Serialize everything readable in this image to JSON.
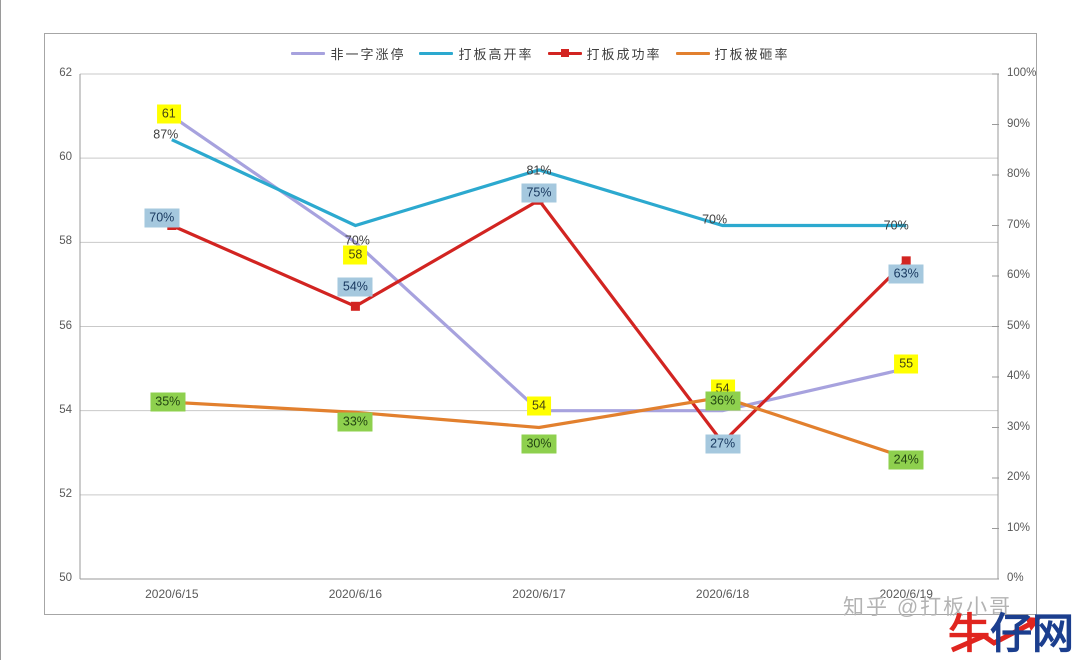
{
  "page": {
    "watermark": "知乎 @打板小哥",
    "logo": {
      "part_red": "牛",
      "part_blue": "仔网",
      "red": "#e0251f",
      "blue": "#1b3e8e"
    }
  },
  "chart_data": {
    "type": "line",
    "title": "",
    "categories": [
      "2020/6/15",
      "2020/6/16",
      "2020/6/17",
      "2020/6/18",
      "2020/6/19"
    ],
    "series": [
      {
        "name": "非一字涨停",
        "axis": "left",
        "color": "#a7a2de",
        "values": [
          61,
          58,
          54,
          54,
          55
        ],
        "label_style": "yellow",
        "label_suffix": "",
        "marker": "none"
      },
      {
        "name": "打板高开率",
        "axis": "right",
        "color": "#2ca9cf",
        "values": [
          87,
          70,
          81,
          70,
          70
        ],
        "label_style": "plain",
        "label_suffix": "%",
        "marker": "none"
      },
      {
        "name": "打板成功率",
        "axis": "right",
        "color": "#d22421",
        "values": [
          70,
          54,
          75,
          27,
          63
        ],
        "label_style": "blue",
        "label_suffix": "%",
        "marker": "square"
      },
      {
        "name": "打板被砸率",
        "axis": "right",
        "color": "#e2802e",
        "values": [
          35,
          33,
          30,
          36,
          24
        ],
        "label_style": "green",
        "label_suffix": "%",
        "marker": "none"
      }
    ],
    "left_axis": {
      "min": 50,
      "max": 62,
      "step": 2,
      "ticks": [
        "50",
        "52",
        "54",
        "56",
        "58",
        "60",
        "62"
      ]
    },
    "right_axis": {
      "min": 0,
      "max": 100,
      "step": 10,
      "ticks": [
        "0%",
        "10%",
        "20%",
        "30%",
        "40%",
        "50%",
        "60%",
        "70%",
        "80%",
        "90%",
        "100%"
      ]
    },
    "grid": true,
    "legend_position": "top",
    "colors": {
      "gridline": "#c9c9c9",
      "axis_line": "#9a9a9a",
      "label_bg_yellow": "#ffff00",
      "label_bg_blue": "#a5c8de",
      "label_bg_green": "#8ed04e"
    }
  }
}
